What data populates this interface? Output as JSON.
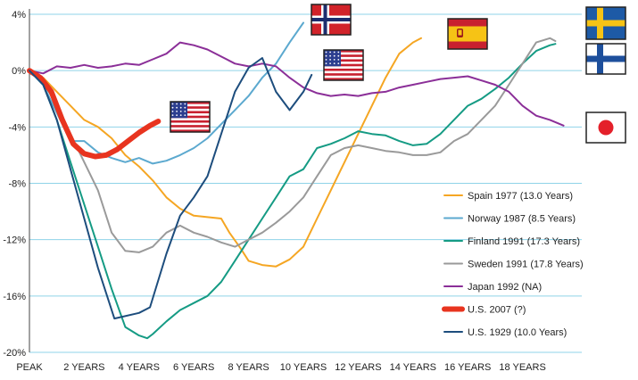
{
  "chart_data": {
    "type": "line",
    "title": "",
    "xlabel": "",
    "ylabel": "",
    "xlim": [
      0,
      19.2
    ],
    "ylim": [
      -20,
      4
    ],
    "y_ticks": [
      {
        "value": 4,
        "label": "4%"
      },
      {
        "value": 0,
        "label": "0%"
      },
      {
        "value": -4,
        "label": "-4%"
      },
      {
        "value": -8,
        "label": "-8%"
      },
      {
        "value": -12,
        "label": "-12%"
      },
      {
        "value": -16,
        "label": "-16%"
      },
      {
        "value": -20,
        "label": "-20%"
      }
    ],
    "x_ticks": [
      {
        "value": 0,
        "label": "PEAK"
      },
      {
        "value": 2,
        "label": "2 YEARS"
      },
      {
        "value": 4,
        "label": "4 YEARS"
      },
      {
        "value": 6,
        "label": "6 YEARS"
      },
      {
        "value": 8,
        "label": "8 YEARS"
      },
      {
        "value": 10,
        "label": "10 YEARS"
      },
      {
        "value": 12,
        "label": "12 YEARS"
      },
      {
        "value": 14,
        "label": "14 YEARS"
      },
      {
        "value": 16,
        "label": "16 YEARS"
      },
      {
        "value": 18,
        "label": "18 YEARS"
      }
    ],
    "grid": "horizontal",
    "legend_position": "bottom-right",
    "series": [
      {
        "name": "Spain 1977 (13.0 Years)",
        "color": "#f5a623",
        "width": 2,
        "points": [
          [
            0,
            0
          ],
          [
            0.5,
            -0.5
          ],
          [
            1,
            -1.5
          ],
          [
            1.5,
            -2.5
          ],
          [
            2,
            -3.5
          ],
          [
            2.5,
            -4
          ],
          [
            3,
            -4.8
          ],
          [
            3.5,
            -6
          ],
          [
            4,
            -6.8
          ],
          [
            4.5,
            -7.8
          ],
          [
            5,
            -9
          ],
          [
            5.5,
            -9.8
          ],
          [
            6,
            -10.3
          ],
          [
            6.5,
            -10.4
          ],
          [
            7,
            -10.5
          ],
          [
            7.3,
            -11.5
          ],
          [
            7.7,
            -12.6
          ],
          [
            8,
            -13.5
          ],
          [
            8.5,
            -13.8
          ],
          [
            9,
            -13.9
          ],
          [
            9.5,
            -13.4
          ],
          [
            10,
            -12.5
          ],
          [
            10.5,
            -10.5
          ],
          [
            11,
            -8.5
          ],
          [
            11.5,
            -6.5
          ],
          [
            12,
            -4.5
          ],
          [
            12.5,
            -2.5
          ],
          [
            13,
            -0.5
          ],
          [
            13.5,
            1.2
          ],
          [
            14,
            2
          ],
          [
            14.3,
            2.3
          ]
        ]
      },
      {
        "name": "Norway 1987 (8.5 Years)",
        "color": "#5ca9cf",
        "width": 2,
        "points": [
          [
            0,
            0
          ],
          [
            0.5,
            -1
          ],
          [
            1,
            -3
          ],
          [
            1.5,
            -5
          ],
          [
            2,
            -5
          ],
          [
            2.5,
            -5.8
          ],
          [
            3,
            -6.2
          ],
          [
            3.5,
            -6.5
          ],
          [
            4,
            -6.2
          ],
          [
            4.5,
            -6.6
          ],
          [
            5,
            -6.4
          ],
          [
            5.5,
            -6
          ],
          [
            6,
            -5.5
          ],
          [
            6.5,
            -4.8
          ],
          [
            7,
            -3.8
          ],
          [
            7.5,
            -2.8
          ],
          [
            8,
            -1.8
          ],
          [
            8.5,
            -0.5
          ],
          [
            9,
            0.5
          ],
          [
            9.5,
            2
          ],
          [
            10,
            3.4
          ]
        ]
      },
      {
        "name": "Finland 1991 (17.3 Years)",
        "color": "#159b84",
        "width": 2,
        "points": [
          [
            0,
            0
          ],
          [
            0.5,
            -1
          ],
          [
            1,
            -3.5
          ],
          [
            1.5,
            -6.5
          ],
          [
            2,
            -9.5
          ],
          [
            2.5,
            -12.5
          ],
          [
            3,
            -15.5
          ],
          [
            3.5,
            -18.2
          ],
          [
            4,
            -18.8
          ],
          [
            4.3,
            -19
          ],
          [
            4.5,
            -18.7
          ],
          [
            5,
            -17.8
          ],
          [
            5.5,
            -17
          ],
          [
            6,
            -16.5
          ],
          [
            6.5,
            -16
          ],
          [
            7,
            -15
          ],
          [
            7.5,
            -13.5
          ],
          [
            8,
            -12
          ],
          [
            8.5,
            -10.5
          ],
          [
            9,
            -9
          ],
          [
            9.5,
            -7.5
          ],
          [
            10,
            -7
          ],
          [
            10.5,
            -5.5
          ],
          [
            11,
            -5.2
          ],
          [
            11.5,
            -4.8
          ],
          [
            12,
            -4.3
          ],
          [
            12.5,
            -4.5
          ],
          [
            13,
            -4.6
          ],
          [
            13.5,
            -5
          ],
          [
            14,
            -5.3
          ],
          [
            14.5,
            -5.2
          ],
          [
            15,
            -4.5
          ],
          [
            15.5,
            -3.5
          ],
          [
            16,
            -2.5
          ],
          [
            16.5,
            -2
          ],
          [
            17,
            -1.3
          ],
          [
            17.5,
            -0.5
          ],
          [
            18,
            0.5
          ],
          [
            18.5,
            1.4
          ],
          [
            19,
            1.8
          ],
          [
            19.2,
            1.9
          ]
        ]
      },
      {
        "name": "Sweden 1991 (17.8 Years)",
        "color": "#9a9a9a",
        "width": 2,
        "points": [
          [
            0,
            0
          ],
          [
            0.5,
            -0.8
          ],
          [
            1,
            -2.5
          ],
          [
            1.5,
            -4.5
          ],
          [
            2,
            -6.5
          ],
          [
            2.5,
            -8.5
          ],
          [
            3,
            -11.5
          ],
          [
            3.5,
            -12.8
          ],
          [
            4,
            -12.9
          ],
          [
            4.5,
            -12.5
          ],
          [
            5,
            -11.5
          ],
          [
            5.5,
            -11
          ],
          [
            6,
            -11.5
          ],
          [
            6.5,
            -11.8
          ],
          [
            7,
            -12.2
          ],
          [
            7.5,
            -12.5
          ],
          [
            8,
            -12
          ],
          [
            8.5,
            -11.5
          ],
          [
            9,
            -10.8
          ],
          [
            9.5,
            -10
          ],
          [
            10,
            -9
          ],
          [
            10.5,
            -7.5
          ],
          [
            11,
            -6
          ],
          [
            11.5,
            -5.5
          ],
          [
            12,
            -5.3
          ],
          [
            12.5,
            -5.5
          ],
          [
            13,
            -5.7
          ],
          [
            13.5,
            -5.8
          ],
          [
            14,
            -6
          ],
          [
            14.5,
            -6
          ],
          [
            15,
            -5.8
          ],
          [
            15.5,
            -5
          ],
          [
            16,
            -4.5
          ],
          [
            16.5,
            -3.5
          ],
          [
            17,
            -2.5
          ],
          [
            17.5,
            -1
          ],
          [
            18,
            0.5
          ],
          [
            18.5,
            2
          ],
          [
            19,
            2.3
          ],
          [
            19.2,
            2.1
          ]
        ]
      },
      {
        "name": "Japan 1992 (NA)",
        "color": "#8b2f98",
        "width": 2,
        "points": [
          [
            0,
            0
          ],
          [
            0.5,
            -0.2
          ],
          [
            1,
            0.3
          ],
          [
            1.5,
            0.2
          ],
          [
            2,
            0.4
          ],
          [
            2.5,
            0.2
          ],
          [
            3,
            0.3
          ],
          [
            3.5,
            0.5
          ],
          [
            4,
            0.4
          ],
          [
            4.5,
            0.8
          ],
          [
            5,
            1.2
          ],
          [
            5.5,
            2
          ],
          [
            6,
            1.8
          ],
          [
            6.5,
            1.5
          ],
          [
            7,
            1
          ],
          [
            7.5,
            0.5
          ],
          [
            8,
            0.3
          ],
          [
            8.5,
            0.5
          ],
          [
            9,
            0.3
          ],
          [
            9.5,
            -0.5
          ],
          [
            10,
            -1.2
          ],
          [
            10.5,
            -1.6
          ],
          [
            11,
            -1.8
          ],
          [
            11.5,
            -1.7
          ],
          [
            12,
            -1.8
          ],
          [
            12.5,
            -1.6
          ],
          [
            13,
            -1.5
          ],
          [
            13.5,
            -1.2
          ],
          [
            14,
            -1
          ],
          [
            14.5,
            -0.8
          ],
          [
            15,
            -0.6
          ],
          [
            15.5,
            -0.5
          ],
          [
            16,
            -0.4
          ],
          [
            16.5,
            -0.7
          ],
          [
            17,
            -1
          ],
          [
            17.5,
            -1.5
          ],
          [
            18,
            -2.5
          ],
          [
            18.5,
            -3.2
          ],
          [
            19,
            -3.5
          ],
          [
            19.5,
            -3.9
          ]
        ]
      },
      {
        "name": "U.S. 2007 (?)",
        "color": "#e8341f",
        "width": 6,
        "points": [
          [
            0,
            0
          ],
          [
            0.4,
            -0.5
          ],
          [
            0.8,
            -1.5
          ],
          [
            1.2,
            -3.5
          ],
          [
            1.6,
            -5.2
          ],
          [
            2,
            -5.9
          ],
          [
            2.4,
            -6.1
          ],
          [
            2.8,
            -6
          ],
          [
            3.2,
            -5.6
          ],
          [
            3.6,
            -5
          ],
          [
            4,
            -4.4
          ],
          [
            4.4,
            -3.9
          ],
          [
            4.7,
            -3.6
          ]
        ]
      },
      {
        "name": "U.S. 1929 (10.0 Years)",
        "color": "#1d4d7d",
        "width": 2,
        "points": [
          [
            0,
            0
          ],
          [
            0.5,
            -1
          ],
          [
            1,
            -3.5
          ],
          [
            1.5,
            -7
          ],
          [
            2,
            -10.5
          ],
          [
            2.5,
            -14
          ],
          [
            3.1,
            -17.6
          ],
          [
            4,
            -17.2
          ],
          [
            4.4,
            -16.8
          ],
          [
            5,
            -13
          ],
          [
            5.5,
            -10.3
          ],
          [
            6,
            -9
          ],
          [
            6.5,
            -7.5
          ],
          [
            7,
            -4.5
          ],
          [
            7.5,
            -1.5
          ],
          [
            8,
            0.2
          ],
          [
            8.5,
            0.9
          ],
          [
            9,
            -1.5
          ],
          [
            9.5,
            -2.8
          ],
          [
            10,
            -1.5
          ],
          [
            10.3,
            -0.3
          ]
        ]
      }
    ],
    "legend": [
      {
        "label": "Spain 1977 (13.0 Years)",
        "color": "#f5a623",
        "width": 2
      },
      {
        "label": "Norway 1987 (8.5 Years)",
        "color": "#5ca9cf",
        "width": 2
      },
      {
        "label": "Finland 1991 (17.3 Years)",
        "color": "#159b84",
        "width": 2
      },
      {
        "label": "Sweden 1991 (17.8 Years)",
        "color": "#9a9a9a",
        "width": 2
      },
      {
        "label": "Japan 1992 (NA)",
        "color": "#8b2f98",
        "width": 2
      },
      {
        "label": "U.S. 2007 (?)",
        "color": "#e8341f",
        "width": 6
      },
      {
        "label": "U.S. 1929 (10.0 Years)",
        "color": "#1d4d7d",
        "width": 2
      }
    ],
    "flags": [
      {
        "country": "norway",
        "icon": "norway-flag-icon"
      },
      {
        "country": "usa",
        "icon": "usa-flag-icon"
      },
      {
        "country": "spain",
        "icon": "spain-flag-icon"
      },
      {
        "country": "sweden",
        "icon": "sweden-flag-icon"
      },
      {
        "country": "finland",
        "icon": "finland-flag-icon"
      },
      {
        "country": "japan",
        "icon": "japan-flag-icon"
      },
      {
        "country": "usa",
        "icon": "usa-flag-icon"
      }
    ]
  }
}
